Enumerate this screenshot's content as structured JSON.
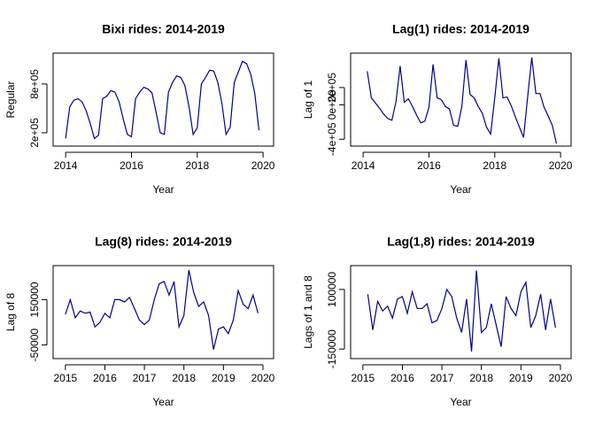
{
  "chart_data": [
    {
      "type": "line",
      "title": "Bixi rides: 2014-2019",
      "x_label": "Year",
      "y_label": "Regular",
      "color": "#00008b",
      "x": [
        2014,
        2014.125,
        2014.25,
        2014.375,
        2014.5,
        2014.625,
        2014.75,
        2014.875,
        2015,
        2015.125,
        2015.25,
        2015.375,
        2015.5,
        2015.625,
        2015.75,
        2015.875,
        2016,
        2016.125,
        2016.25,
        2016.375,
        2016.5,
        2016.625,
        2016.75,
        2016.875,
        2017,
        2017.125,
        2017.25,
        2017.375,
        2017.5,
        2017.625,
        2017.75,
        2017.875,
        2018,
        2018.125,
        2018.25,
        2018.375,
        2018.5,
        2018.625,
        2018.75,
        2018.875,
        2019,
        2019.125,
        2019.25,
        2019.375,
        2019.5,
        2019.625,
        2019.75,
        2019.875
      ],
      "values": [
        130000,
        520000,
        600000,
        620000,
        580000,
        470000,
        310000,
        130000,
        170000,
        620000,
        650000,
        720000,
        700000,
        580000,
        370000,
        180000,
        150000,
        620000,
        700000,
        760000,
        740000,
        690000,
        450000,
        200000,
        180000,
        700000,
        820000,
        900000,
        880000,
        780000,
        520000,
        180000,
        260000,
        800000,
        880000,
        970000,
        960000,
        820000,
        560000,
        180000,
        270000,
        820000,
        950000,
        1080000,
        1050000,
        920000,
        680000,
        230000
      ],
      "xlim": [
        2013.62,
        2020.32
      ],
      "xticks": [
        2014,
        2016,
        2018,
        2020
      ],
      "ylim": [
        36000,
        1180000
      ],
      "yticks": [
        {
          "value": 200000,
          "label": "2e+05"
        },
        {
          "value": 800000,
          "label": "8e+05"
        }
      ]
    },
    {
      "type": "line",
      "title": "Lag(1) rides: 2014-2019",
      "x_label": "Year",
      "y_label": "Lag of 1",
      "color": "#00008b",
      "x": [
        2014.125,
        2014.25,
        2014.375,
        2014.5,
        2014.625,
        2014.75,
        2014.875,
        2015,
        2015.125,
        2015.25,
        2015.375,
        2015.5,
        2015.625,
        2015.75,
        2015.875,
        2016,
        2016.125,
        2016.25,
        2016.375,
        2016.5,
        2016.625,
        2016.75,
        2016.875,
        2017,
        2017.125,
        2017.25,
        2017.375,
        2017.5,
        2017.625,
        2017.75,
        2017.875,
        2018,
        2018.125,
        2018.25,
        2018.375,
        2018.5,
        2018.625,
        2018.75,
        2018.875,
        2019,
        2019.125,
        2019.25,
        2019.375,
        2019.5,
        2019.625,
        2019.75,
        2019.875
      ],
      "values": [
        390000,
        80000,
        20000,
        -40000,
        -110000,
        -160000,
        -180000,
        40000,
        450000,
        30000,
        70000,
        -20000,
        -120000,
        -210000,
        -190000,
        -30000,
        470000,
        80000,
        60000,
        -20000,
        -50000,
        -240000,
        -250000,
        -20000,
        520000,
        120000,
        80000,
        -20000,
        -100000,
        -260000,
        -340000,
        80000,
        540000,
        80000,
        90000,
        -10000,
        -140000,
        -260000,
        -380000,
        90000,
        550000,
        130000,
        130000,
        -30000,
        -130000,
        -240000,
        -450000
      ],
      "xlim": [
        2013.62,
        2020.32
      ],
      "xticks": [
        2014,
        2016,
        2018,
        2020
      ],
      "ylim": [
        -480000,
        600000
      ],
      "yticks": [
        {
          "value": -400000,
          "label": "-4e+05"
        },
        {
          "value": 0,
          "label": "0e+00"
        },
        {
          "value": 200000,
          "label": "2e+05"
        }
      ]
    },
    {
      "type": "line",
      "title": "Lag(8) rides: 2014-2019",
      "x_label": "Year",
      "y_label": "Lag of 8",
      "color": "#00008b",
      "x": [
        2015,
        2015.125,
        2015.25,
        2015.375,
        2015.5,
        2015.625,
        2015.75,
        2015.875,
        2016,
        2016.125,
        2016.25,
        2016.375,
        2016.5,
        2016.625,
        2016.75,
        2016.875,
        2017,
        2017.125,
        2017.25,
        2017.375,
        2017.5,
        2017.625,
        2017.75,
        2017.875,
        2018,
        2018.125,
        2018.25,
        2018.375,
        2018.5,
        2018.625,
        2018.75,
        2018.875,
        2019,
        2019.125,
        2019.25,
        2019.375,
        2019.5,
        2019.625,
        2019.75,
        2019.875
      ],
      "values": [
        85000,
        150000,
        70000,
        100000,
        90000,
        95000,
        30000,
        50000,
        90000,
        70000,
        150000,
        150000,
        140000,
        160000,
        110000,
        60000,
        40000,
        60000,
        150000,
        220000,
        230000,
        170000,
        230000,
        30000,
        80000,
        280000,
        180000,
        120000,
        140000,
        80000,
        -70000,
        20000,
        30000,
        0,
        60000,
        190000,
        130000,
        110000,
        170000,
        90000
      ],
      "xlim": [
        2014.69,
        2020.27
      ],
      "xticks": [
        2015,
        2016,
        2017,
        2018,
        2019,
        2020
      ],
      "ylim": [
        -110000,
        300000
      ],
      "yticks": [
        -50000,
        150000
      ]
    },
    {
      "type": "line",
      "title": "Lag(1,8) rides: 2014-2019",
      "x_label": "Year",
      "y_label": "Lags of 1 and 8",
      "color": "#00008b",
      "x": [
        2015.125,
        2015.25,
        2015.375,
        2015.5,
        2015.625,
        2015.75,
        2015.875,
        2016,
        2016.125,
        2016.25,
        2016.375,
        2016.5,
        2016.625,
        2016.75,
        2016.875,
        2017,
        2017.125,
        2017.25,
        2017.375,
        2017.5,
        2017.625,
        2017.75,
        2017.875,
        2018,
        2018.125,
        2018.25,
        2018.375,
        2018.5,
        2018.625,
        2018.75,
        2018.875,
        2019,
        2019.125,
        2019.25,
        2019.375,
        2019.5,
        2019.625,
        2019.75,
        2019.875
      ],
      "values": [
        80000,
        -70000,
        50000,
        10000,
        30000,
        -20000,
        60000,
        70000,
        0,
        90000,
        20000,
        20000,
        40000,
        -40000,
        -30000,
        20000,
        100000,
        70000,
        -20000,
        -80000,
        60000,
        -160000,
        180000,
        -80000,
        -60000,
        40000,
        -50000,
        -140000,
        70000,
        20000,
        -10000,
        90000,
        130000,
        -60000,
        -10000,
        80000,
        -70000,
        60000,
        -60000
      ],
      "xlim": [
        2014.69,
        2020.27
      ],
      "xticks": [
        2015,
        2016,
        2017,
        2018,
        2019,
        2020
      ],
      "ylim": [
        -190000,
        200000
      ],
      "yticks": [
        -150000,
        100000
      ]
    }
  ]
}
